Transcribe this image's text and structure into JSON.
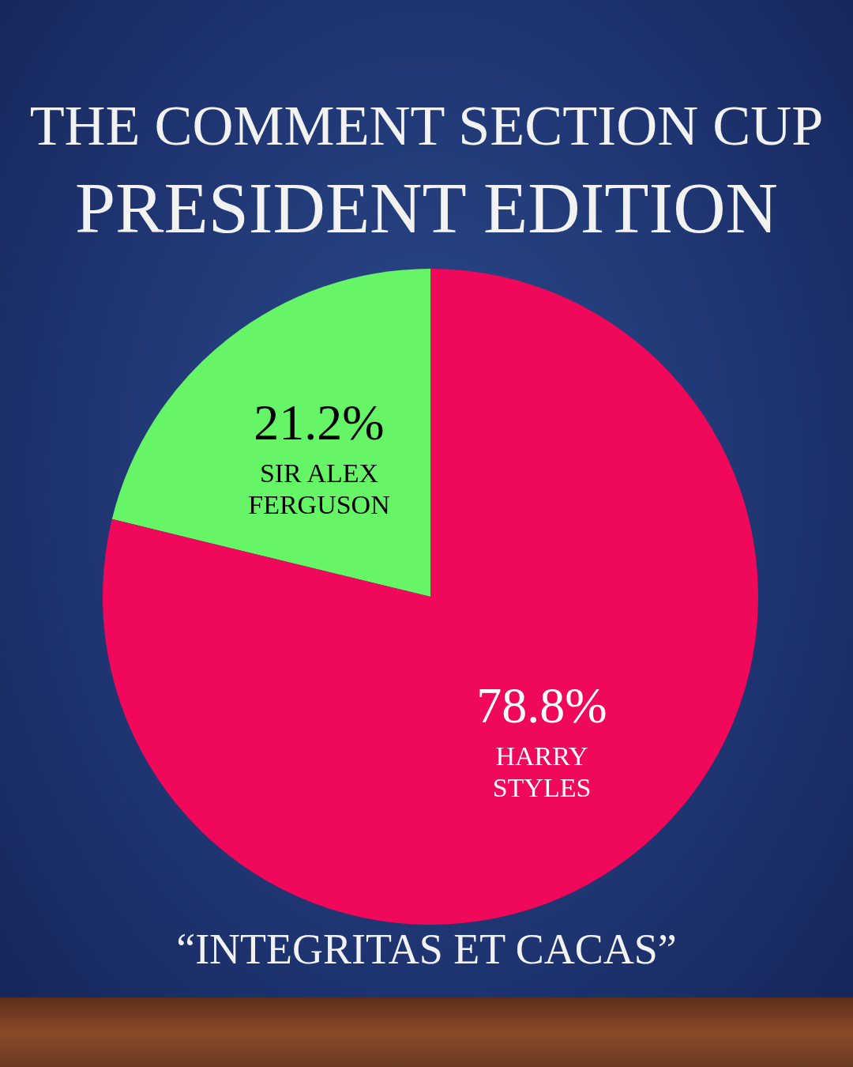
{
  "chart_data": {
    "type": "pie",
    "title": "THE COMMENT SECTION CUP",
    "subtitle": "PRESIDENT EDITION",
    "categories": [
      "SIR ALEX FERGUSON",
      "HARRY STYLES"
    ],
    "values": [
      21.2,
      78.8
    ],
    "colors": [
      "#66f566",
      "#f0085a"
    ],
    "value_labels": [
      "21.2%",
      "78.8%"
    ],
    "annotations": [
      "“INTEGRITAS ET CACAS”"
    ]
  }
}
